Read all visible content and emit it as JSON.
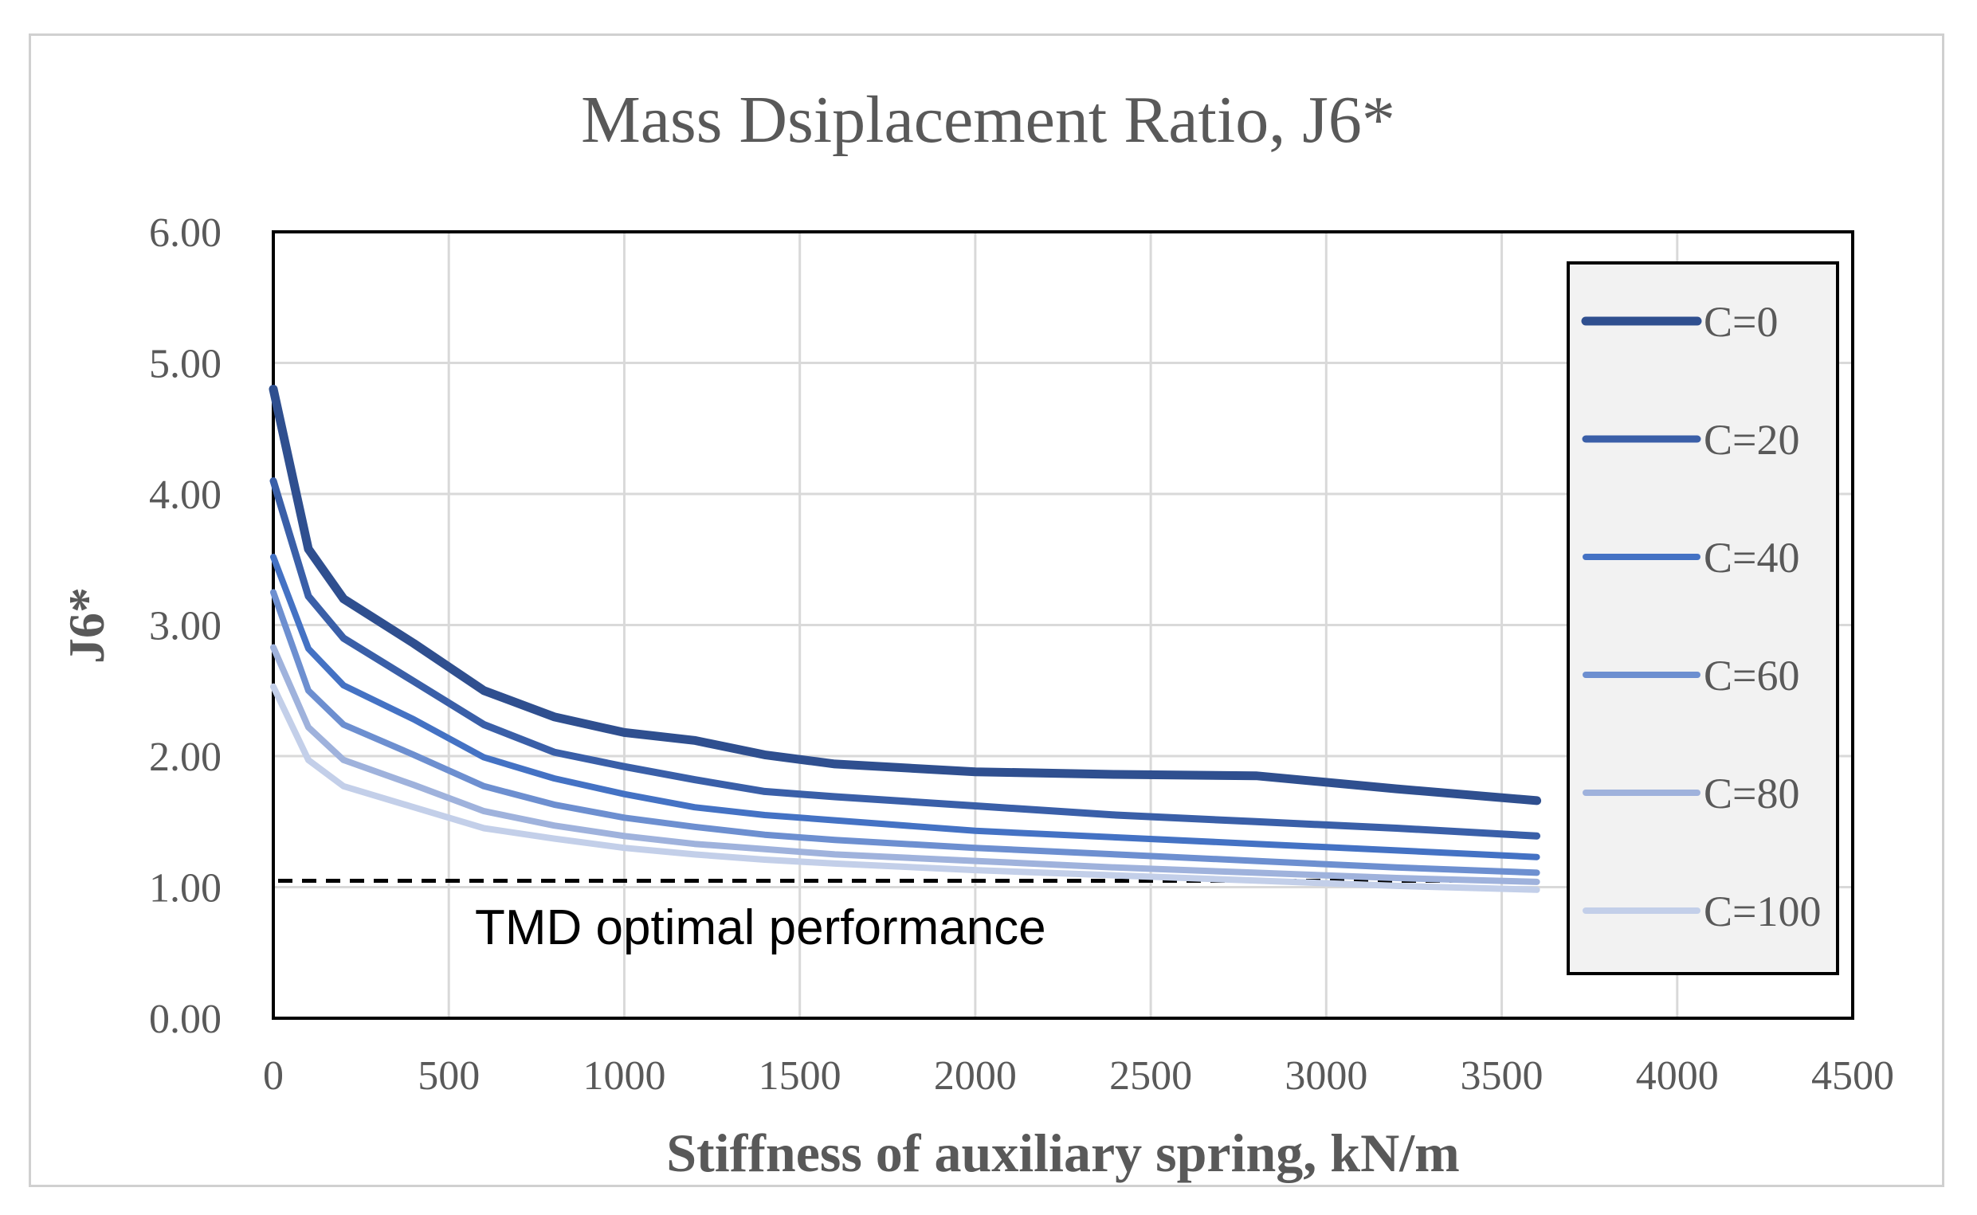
{
  "chart_data": {
    "type": "line",
    "title": "Mass Dsiplacement Ratio, J6*",
    "xlabel": "Stiffness of auxiliary spring, kN/m",
    "ylabel": "J6*",
    "xlim": [
      0,
      4500
    ],
    "ylim": [
      0,
      6
    ],
    "x_ticks": [
      "0",
      "500",
      "1000",
      "1500",
      "2000",
      "2500",
      "3000",
      "3500",
      "4000",
      "4500"
    ],
    "y_ticks": [
      "0.00",
      "1.00",
      "2.00",
      "3.00",
      "4.00",
      "5.00",
      "6.00"
    ],
    "grid": true,
    "legend_position": "right",
    "x": [
      0,
      100,
      200,
      400,
      600,
      800,
      1000,
      1200,
      1400,
      1600,
      2000,
      2400,
      2800,
      3200,
      3600
    ],
    "series": [
      {
        "name": "C=0",
        "color": "#2f4f8f",
        "values": [
          4.8,
          3.58,
          3.2,
          2.86,
          2.5,
          2.3,
          2.18,
          2.12,
          2.01,
          1.94,
          1.88,
          1.86,
          1.85,
          1.75,
          1.66
        ]
      },
      {
        "name": "C=20",
        "color": "#3a5fa8",
        "values": [
          4.1,
          3.22,
          2.9,
          2.57,
          2.24,
          2.03,
          1.92,
          1.82,
          1.73,
          1.69,
          1.62,
          1.55,
          1.5,
          1.45,
          1.39
        ]
      },
      {
        "name": "C=40",
        "color": "#4472c4",
        "values": [
          3.52,
          2.82,
          2.54,
          2.28,
          1.99,
          1.83,
          1.71,
          1.61,
          1.55,
          1.51,
          1.43,
          1.38,
          1.33,
          1.28,
          1.23
        ]
      },
      {
        "name": "C=60",
        "color": "#6d8fd0",
        "values": [
          3.25,
          2.5,
          2.24,
          2.01,
          1.77,
          1.63,
          1.53,
          1.46,
          1.4,
          1.36,
          1.3,
          1.25,
          1.2,
          1.15,
          1.11
        ]
      },
      {
        "name": "C=80",
        "color": "#9fb2dc",
        "values": [
          2.83,
          2.22,
          1.97,
          1.78,
          1.58,
          1.47,
          1.39,
          1.33,
          1.29,
          1.25,
          1.2,
          1.15,
          1.11,
          1.07,
          1.04
        ]
      },
      {
        "name": "C=100",
        "color": "#c3cfe9",
        "values": [
          2.53,
          1.97,
          1.77,
          1.61,
          1.45,
          1.37,
          1.3,
          1.25,
          1.21,
          1.18,
          1.13,
          1.09,
          1.05,
          1.01,
          0.98
        ]
      }
    ],
    "reference_line": {
      "y": 1.0,
      "x_range": [
        0,
        3600
      ],
      "style": "dashed",
      "color": "#000000",
      "label": "TMD optimal performance"
    }
  }
}
